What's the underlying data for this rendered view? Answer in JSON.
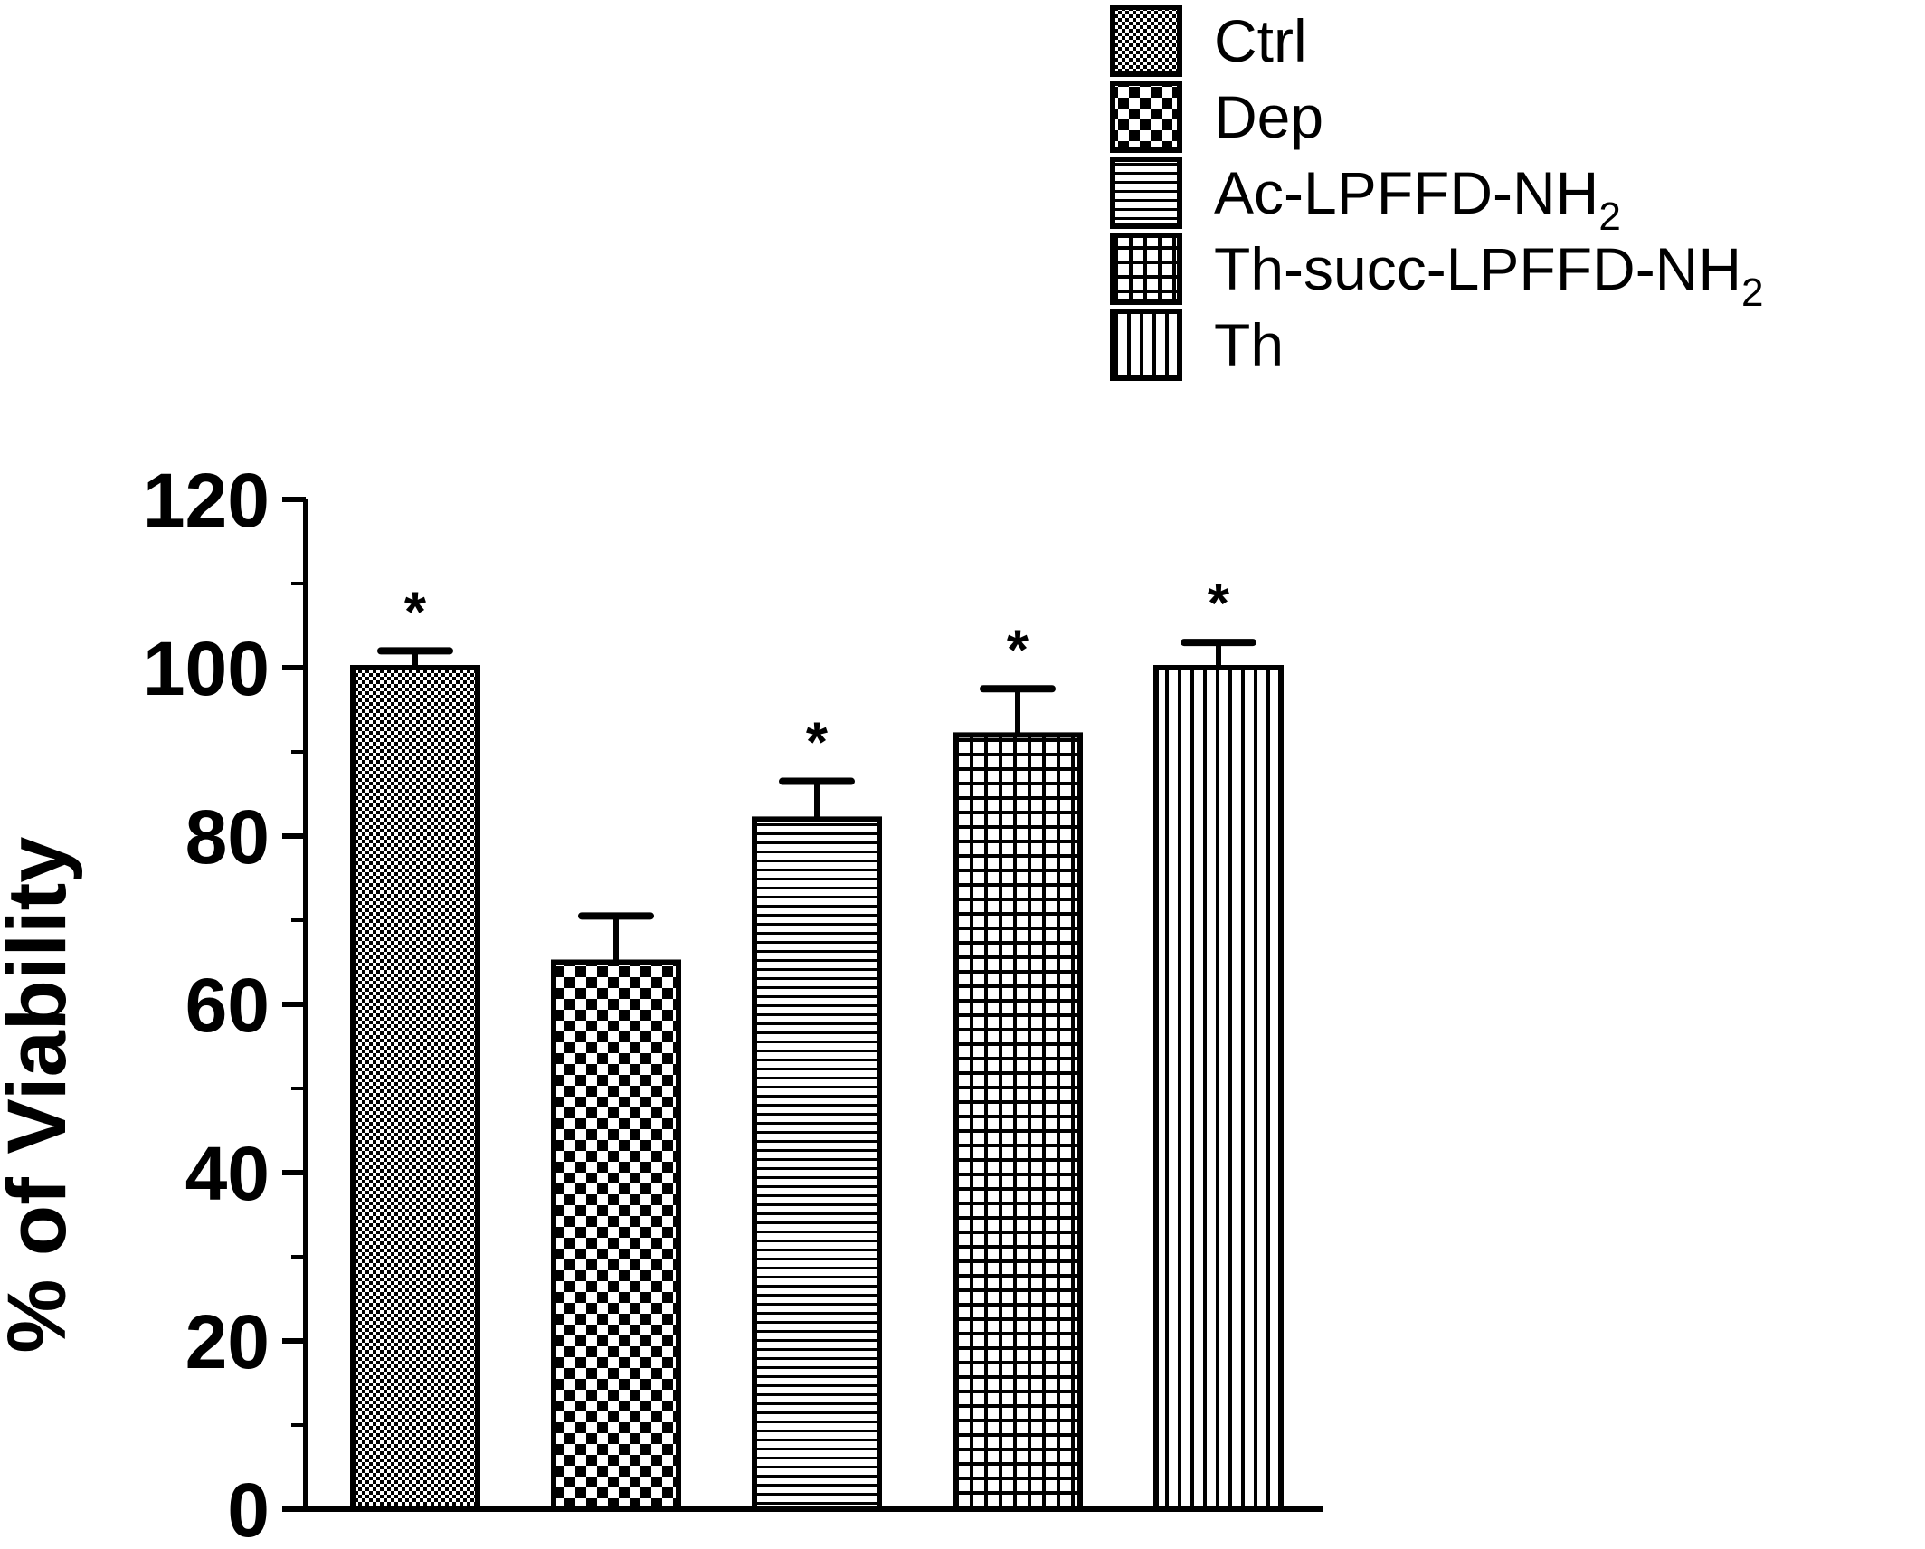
{
  "chart_data": {
    "type": "bar",
    "ylabel": "% of Viability",
    "xlabel": "",
    "ylim": [
      0,
      120
    ],
    "y_ticks": [
      0,
      20,
      40,
      60,
      80,
      100,
      120
    ],
    "grid": false,
    "legend_position": "top-right",
    "series": [
      {
        "name": "Ctrl",
        "pattern": "fine-dots",
        "value": 100,
        "error": 2,
        "significant": true,
        "mark": "*"
      },
      {
        "name": "Dep",
        "pattern": "checker",
        "value": 65,
        "error": 5.5,
        "significant": false,
        "mark": ""
      },
      {
        "name": "Ac-LPFFD-NH",
        "name_subscript": "2",
        "pattern": "horizontal-lines",
        "value": 82,
        "error": 4.5,
        "significant": true,
        "mark": "*"
      },
      {
        "name": "Th-succ-LPFFD-NH",
        "name_subscript": "2",
        "pattern": "grid",
        "value": 92,
        "error": 5.5,
        "significant": true,
        "mark": "*"
      },
      {
        "name": "Th",
        "pattern": "vertical-lines",
        "value": 100,
        "error": 3,
        "significant": true,
        "mark": "*"
      }
    ],
    "colors": {
      "ink": "#000000",
      "background": "#ffffff"
    }
  }
}
